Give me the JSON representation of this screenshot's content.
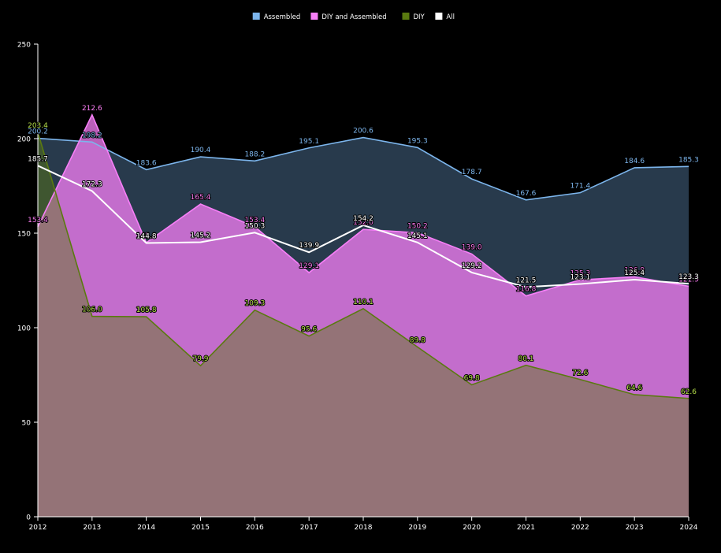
{
  "chart_data": {
    "type": "area",
    "title": "",
    "xlabel": "",
    "ylabel": "",
    "x": [
      "2012",
      "2013",
      "2014",
      "2015",
      "2016",
      "2017",
      "2018",
      "2019",
      "2020",
      "2021",
      "2022",
      "2023",
      "2024"
    ],
    "ylim": [
      0,
      250
    ],
    "yticks": [
      0,
      50,
      100,
      150,
      200,
      250
    ],
    "grid": false,
    "legend_position": "top-center",
    "series": [
      {
        "name": "Assembled",
        "color": "#7cb5ec",
        "values": [
          200.2,
          198.2,
          183.6,
          190.4,
          188.2,
          195.1,
          200.6,
          195.3,
          178.7,
          167.6,
          171.4,
          184.6,
          185.3
        ],
        "labels": [
          "200.2",
          "198.2",
          "183.6",
          "190.4",
          "188.2",
          "195.1",
          "200.6",
          "195.3",
          "178.7",
          "167.6",
          "171.4",
          "184.6",
          "185.3"
        ]
      },
      {
        "name": "DIY and Assembled",
        "color": "#f77ff7",
        "values": [
          153.4,
          212.6,
          145.0,
          165.4,
          153.4,
          129.1,
          152.0,
          150.2,
          139.0,
          116.8,
          125.3,
          126.9,
          121.9
        ],
        "labels": [
          "153.4",
          "212.6",
          "145.0",
          "165.4",
          "153.4",
          "129.1",
          "152.0",
          "150.2",
          "139.0",
          "116.8",
          "125.3",
          "126.9",
          "121.9"
        ]
      },
      {
        "name": "DIY",
        "color": "#5a7a10",
        "values": [
          203.4,
          106.0,
          105.8,
          79.9,
          109.3,
          95.6,
          110.1,
          89.8,
          69.8,
          80.1,
          72.6,
          64.6,
          62.6
        ],
        "labels": [
          "203.4",
          "106.0",
          "105.8",
          "79.9",
          "109.3",
          "95.6",
          "110.1",
          "89.8",
          "69.8",
          "80.1",
          "72.6",
          "64.6",
          "62.6"
        ]
      },
      {
        "name": "All",
        "color": "#ffffff",
        "values": [
          185.7,
          172.3,
          144.8,
          145.2,
          150.3,
          139.9,
          154.2,
          145.1,
          129.2,
          121.5,
          123.1,
          125.4,
          123.3
        ],
        "labels": [
          "185.7",
          "172.3",
          "144.8",
          "145.2",
          "150.3",
          "139.9",
          "154.2",
          "145.1",
          "129.2",
          "121.5",
          "123.1",
          "125.4",
          "123.3"
        ]
      }
    ]
  }
}
